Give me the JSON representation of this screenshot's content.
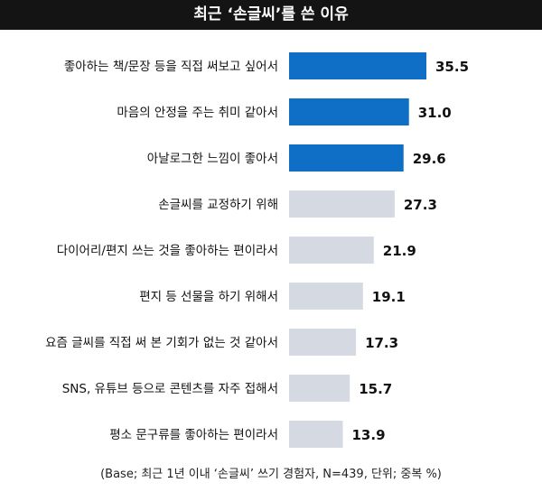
{
  "chart_data": {
    "type": "bar",
    "orientation": "horizontal",
    "title": "최근 ‘손글씨’를 쓴 이유",
    "footnote": "(Base; 최근 1년 이내 ‘손글씨’ 쓰기 경험자, N=439, 단위; 중복 %)",
    "categories": [
      "좋아하는 책/문장 등을 직접 써보고 싶어서",
      "마음의 안정을 주는 취미 같아서",
      "아날로그한 느낌이 좋아서",
      "손글씨를 교정하기 위해",
      "다이어리/편지 쓰는 것을 좋아하는 편이라서",
      "편지 등 선물을 하기 위해서",
      "요즘 글씨를 직접 써 본 기회가 없는 것 같아서",
      "SNS, 유튜브 등으로 콘텐츠를 자주 접해서",
      "평소 문구류를 좋아하는 편이라서"
    ],
    "values": [
      35.5,
      31.0,
      29.6,
      27.3,
      21.9,
      19.1,
      17.3,
      15.7,
      13.9
    ],
    "value_labels": [
      "35.5",
      "31.0",
      "29.6",
      "27.3",
      "21.9",
      "19.1",
      "17.3",
      "15.7",
      "13.9"
    ],
    "highlighted_top_n": 3,
    "colors": {
      "highlight": "#0f6fc6",
      "normal": "#d4d9e2",
      "label": "#111111"
    },
    "xlim": [
      0,
      35.5
    ],
    "grid": false,
    "legend": "none"
  }
}
